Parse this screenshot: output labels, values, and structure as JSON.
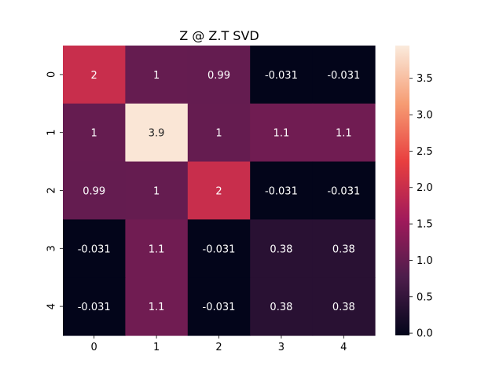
{
  "chart_data": {
    "type": "heatmap",
    "title": "Z @ Z.T SVD",
    "x_labels": [
      "0",
      "1",
      "2",
      "3",
      "4"
    ],
    "y_labels": [
      "0",
      "1",
      "2",
      "3",
      "4"
    ],
    "values": [
      [
        2,
        1,
        0.99,
        -0.031,
        -0.031
      ],
      [
        1,
        3.9,
        1,
        1.1,
        1.1
      ],
      [
        0.99,
        1,
        2,
        -0.031,
        -0.031
      ],
      [
        -0.031,
        1.1,
        -0.031,
        0.38,
        0.38
      ],
      [
        -0.031,
        1.1,
        -0.031,
        0.38,
        0.38
      ]
    ],
    "annotations": [
      [
        "2",
        "1",
        "0.99",
        "-0.031",
        "-0.031"
      ],
      [
        "1",
        "3.9",
        "1",
        "1.1",
        "1.1"
      ],
      [
        "0.99",
        "1",
        "2",
        "-0.031",
        "-0.031"
      ],
      [
        "-0.031",
        "1.1",
        "-0.031",
        "0.38",
        "0.38"
      ],
      [
        "-0.031",
        "1.1",
        "-0.031",
        "0.38",
        "0.38"
      ]
    ],
    "colorbar": {
      "range": [
        -0.031,
        3.95
      ],
      "ticks": [
        0.0,
        0.5,
        1.0,
        1.5,
        2.0,
        2.5,
        3.0,
        3.5
      ],
      "tick_labels": [
        "0.0",
        "0.5",
        "1.0",
        "1.5",
        "2.0",
        "2.5",
        "3.0",
        "3.5"
      ],
      "colormap": "rocket",
      "colormap_stops": [
        "#03051a",
        "#4c1d4b",
        "#a11a5b",
        "#e83f3f",
        "#f69c73",
        "#faebdd"
      ]
    }
  }
}
